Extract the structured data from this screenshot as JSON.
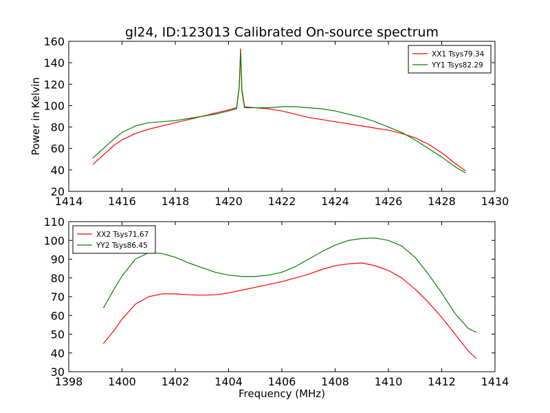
{
  "title": "gl24, ID:123013 Calibrated On-source spectrum",
  "chart_data": [
    {
      "type": "line",
      "ylabel": "Power in Kelvin",
      "xlabel": "",
      "xlim": [
        1414,
        1430
      ],
      "ylim": [
        20,
        160
      ],
      "xticks": [
        1414,
        1416,
        1418,
        1420,
        1422,
        1424,
        1426,
        1428,
        1430
      ],
      "yticks": [
        20,
        40,
        60,
        80,
        100,
        120,
        140,
        160
      ],
      "xtick_labels": [
        "1414",
        "1416",
        "1418",
        "1420",
        "1422",
        "1424",
        "1426",
        "1428",
        "1430"
      ],
      "ytick_labels": [
        "20",
        "40",
        "60",
        "80",
        "100",
        "120",
        "140",
        "160"
      ],
      "grid": false,
      "legend_position": "top-right",
      "series": [
        {
          "name": "XX1 Tsys79.34",
          "color": "#ff0000",
          "x": [
            1414.9,
            1415.3,
            1415.7,
            1416.0,
            1416.5,
            1417.0,
            1417.5,
            1418.0,
            1418.5,
            1419.0,
            1419.5,
            1420.0,
            1420.3,
            1420.4,
            1420.45,
            1420.5,
            1420.6,
            1421.0,
            1421.5,
            1422.0,
            1422.5,
            1423.0,
            1423.5,
            1424.0,
            1424.5,
            1425.0,
            1425.5,
            1426.0,
            1426.5,
            1427.0,
            1427.5,
            1428.0,
            1428.5,
            1428.9
          ],
          "y": [
            45,
            54,
            63,
            68,
            74,
            78,
            81,
            84,
            87,
            90,
            93,
            96,
            98,
            118,
            153,
            115,
            99,
            98,
            97,
            95,
            92,
            89,
            87,
            85,
            83,
            81,
            79,
            77,
            74,
            70,
            64,
            56,
            46,
            39
          ]
        },
        {
          "name": "YY1 Tsys82.29",
          "color": "#008000",
          "x": [
            1414.9,
            1415.3,
            1415.7,
            1416.0,
            1416.5,
            1417.0,
            1417.5,
            1418.0,
            1418.5,
            1419.0,
            1419.5,
            1420.0,
            1420.3,
            1420.4,
            1420.45,
            1420.5,
            1420.6,
            1421.0,
            1421.5,
            1422.0,
            1422.5,
            1423.0,
            1423.5,
            1424.0,
            1424.5,
            1425.0,
            1425.5,
            1426.0,
            1426.5,
            1427.0,
            1427.5,
            1428.0,
            1428.5,
            1428.9
          ],
          "y": [
            51,
            60,
            69,
            75,
            81,
            84,
            85,
            86,
            88,
            90,
            92,
            95,
            97,
            117,
            150,
            113,
            98,
            98,
            98,
            99,
            99,
            98,
            97,
            95,
            92,
            89,
            85,
            80,
            75,
            68,
            60,
            52,
            43,
            37
          ]
        }
      ]
    },
    {
      "type": "line",
      "ylabel": "",
      "xlabel": "Frequency (MHz)",
      "xlim": [
        1398,
        1414
      ],
      "ylim": [
        30,
        110
      ],
      "xticks": [
        1398,
        1400,
        1402,
        1404,
        1406,
        1408,
        1410,
        1412,
        1414
      ],
      "yticks": [
        30,
        40,
        50,
        60,
        70,
        80,
        90,
        100,
        110
      ],
      "xtick_labels": [
        "1398",
        "1400",
        "1402",
        "1404",
        "1406",
        "1408",
        "1410",
        "1412",
        "1414"
      ],
      "ytick_labels": [
        "30",
        "40",
        "50",
        "60",
        "70",
        "80",
        "90",
        "100",
        "110"
      ],
      "grid": false,
      "legend_position": "top-left",
      "series": [
        {
          "name": "XX2 Tsys71.67",
          "color": "#ff0000",
          "x": [
            1399.3,
            1399.7,
            1400.0,
            1400.5,
            1401.0,
            1401.5,
            1402.0,
            1402.5,
            1403.0,
            1403.5,
            1404.0,
            1404.5,
            1405.0,
            1405.5,
            1406.0,
            1406.5,
            1407.0,
            1407.5,
            1408.0,
            1408.5,
            1409.0,
            1409.5,
            1410.0,
            1410.5,
            1411.0,
            1411.5,
            1412.0,
            1412.5,
            1413.0,
            1413.3
          ],
          "y": [
            45,
            52,
            58,
            66,
            70,
            71.5,
            71.5,
            71,
            70.8,
            71,
            72,
            73.5,
            75,
            76.5,
            78,
            80,
            82,
            84.5,
            86.5,
            87.5,
            88,
            86.5,
            84,
            80,
            74,
            67,
            59,
            50,
            41,
            37
          ]
        },
        {
          "name": "YY2 Tsys86.45",
          "color": "#008000",
          "x": [
            1399.3,
            1399.7,
            1400.0,
            1400.5,
            1401.0,
            1401.5,
            1402.0,
            1402.5,
            1403.0,
            1403.5,
            1404.0,
            1404.5,
            1405.0,
            1405.5,
            1406.0,
            1406.5,
            1407.0,
            1407.5,
            1408.0,
            1408.5,
            1409.0,
            1409.5,
            1410.0,
            1410.5,
            1411.0,
            1411.5,
            1412.0,
            1412.5,
            1413.0,
            1413.3
          ],
          "y": [
            64,
            74,
            81,
            90,
            93.5,
            93,
            91,
            88,
            85.5,
            83,
            81.5,
            80.8,
            80.8,
            81.5,
            83,
            86,
            90,
            94,
            97.5,
            100,
            101,
            101.3,
            100,
            97,
            91,
            82,
            72,
            61,
            53,
            51
          ]
        }
      ]
    }
  ]
}
